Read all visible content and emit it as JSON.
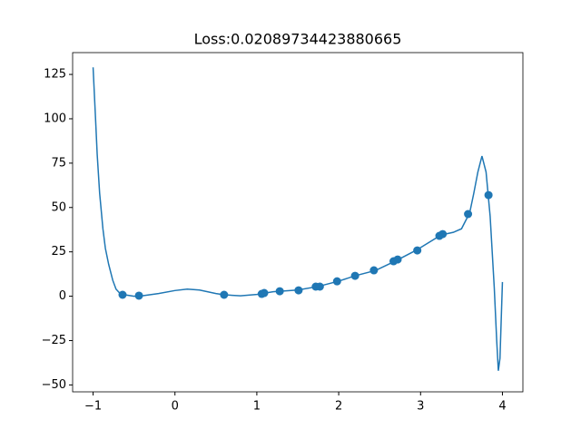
{
  "chart_data": {
    "type": "line",
    "title": "Loss:0.02089734423880665",
    "xlim": [
      -1.25,
      4.25
    ],
    "ylim": [
      -53.9,
      137.3
    ],
    "xticks": [
      {
        "value": -1,
        "label": "−1"
      },
      0,
      1,
      2,
      3,
      4
    ],
    "yticks": [
      {
        "value": -50,
        "label": "−50"
      },
      {
        "value": -25,
        "label": "−25"
      },
      0,
      25,
      50,
      75,
      100,
      125
    ],
    "series": [
      {
        "type": "line",
        "color": "#1f77b4",
        "x": [
          -1,
          -0.97,
          -0.95,
          -0.92,
          -0.88,
          -0.85,
          -0.81,
          -0.76,
          -0.72,
          -0.68,
          -0.64,
          -0.5,
          -0.4,
          -0.2,
          0,
          0.15,
          0.3,
          0.5,
          0.6,
          0.8,
          1.0,
          1.2,
          1.5,
          1.75,
          2.0,
          2.2,
          2.45,
          2.7,
          2.95,
          3.25,
          3.4,
          3.5,
          3.6,
          3.65,
          3.7,
          3.75,
          3.8,
          3.85,
          3.9,
          3.93,
          3.95,
          3.97,
          4.0
        ],
        "values": [
          129,
          100,
          80,
          58,
          38,
          27,
          18,
          9,
          4,
          2,
          1,
          0,
          0.2,
          1.5,
          3.2,
          4,
          3.5,
          1.5,
          0.8,
          0.2,
          1,
          2.5,
          3.5,
          5.5,
          8.5,
          11.5,
          14.5,
          20,
          26,
          34.5,
          36,
          38,
          47,
          58,
          70,
          79,
          70,
          45,
          5,
          -25,
          -42,
          -35,
          8
        ]
      },
      {
        "type": "scatter",
        "color": "#1f77b4",
        "x": [
          -0.64,
          -0.44,
          0.6,
          1.06,
          1.09,
          1.28,
          1.51,
          1.72,
          1.77,
          1.98,
          2.2,
          2.43,
          2.67,
          2.72,
          2.96,
          3.23,
          3.27,
          3.58,
          3.83
        ],
        "values": [
          0.8,
          0.3,
          0.8,
          1.3,
          1.8,
          2.8,
          3.3,
          5.4,
          5.4,
          8.4,
          11.5,
          14.6,
          19.7,
          20.7,
          25.8,
          34,
          35,
          46.3,
          57
        ]
      }
    ]
  }
}
